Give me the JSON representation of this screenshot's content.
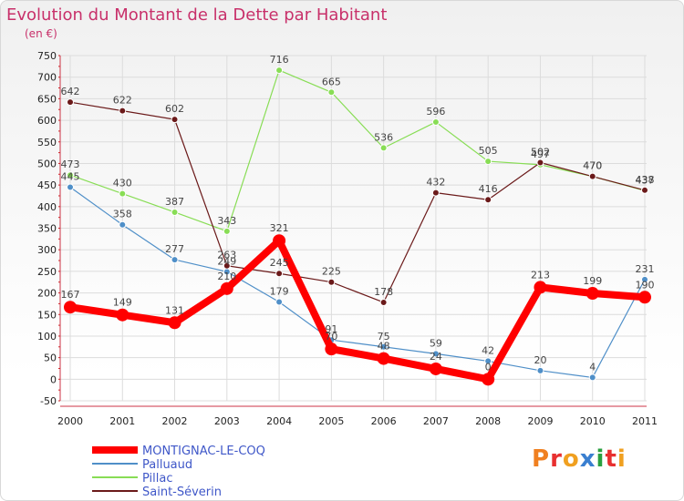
{
  "title": "Evolution du Montant de la Dette par Habitant",
  "unit": "(en €)",
  "logo": {
    "text": "Proxiti"
  },
  "chart_data": {
    "type": "line",
    "title": "Evolution du Montant de la Dette par Habitant",
    "ylabel": "(en €)",
    "xlabel": "",
    "x": [
      "2000",
      "2001",
      "2002",
      "2003",
      "2004",
      "2005",
      "2006",
      "2007",
      "2008",
      "2009",
      "2010",
      "2011"
    ],
    "ylim": [
      -50,
      750
    ],
    "yticks": [
      -50,
      0,
      50,
      100,
      150,
      200,
      250,
      300,
      350,
      400,
      450,
      500,
      550,
      600,
      650,
      700,
      750
    ],
    "grid": true,
    "legend_position": "bottom-left",
    "series": [
      {
        "name": "MONTIGNAC-LE-COQ",
        "color": "#ff0000",
        "values": [
          167,
          149,
          131,
          210,
          321,
          70,
          48,
          24,
          0,
          213,
          199,
          190
        ]
      },
      {
        "name": "Palluaud",
        "color": "#4f8fc8",
        "values": [
          445,
          358,
          277,
          249,
          179,
          91,
          75,
          59,
          42,
          20,
          4,
          231
        ]
      },
      {
        "name": "Pillac",
        "color": "#88dd55",
        "values": [
          473,
          430,
          387,
          343,
          716,
          665,
          536,
          596,
          505,
          497,
          470,
          437
        ]
      },
      {
        "name": "Saint-Séverin",
        "color": "#6b1a1a",
        "values": [
          642,
          622,
          602,
          263,
          245,
          225,
          178,
          432,
          416,
          502,
          470,
          438
        ]
      }
    ]
  }
}
